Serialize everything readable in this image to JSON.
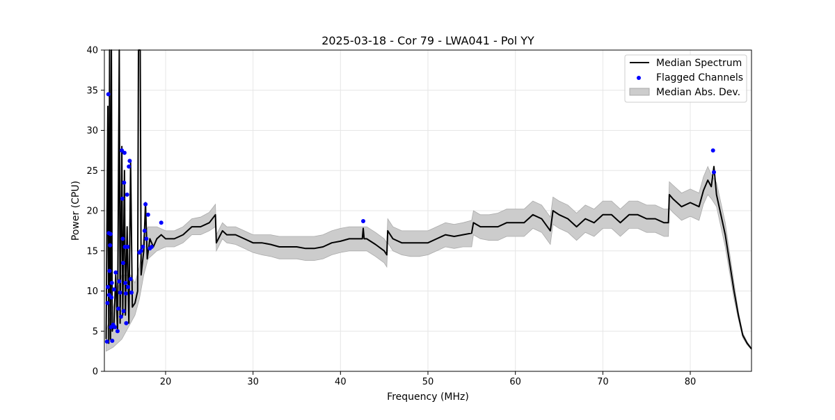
{
  "chart_data": {
    "type": "line",
    "title": "2025-03-18 - Cor 79 - LWA041 - Pol YY",
    "xlabel": "Frequency (MHz)",
    "ylabel": "Power (CPU)",
    "xlim": [
      13,
      87
    ],
    "ylim": [
      0,
      40
    ],
    "xticks": [
      20,
      30,
      40,
      50,
      60,
      70,
      80
    ],
    "yticks": [
      0,
      5,
      10,
      15,
      20,
      25,
      30,
      35,
      40
    ],
    "grid": true,
    "legend_position": "top-right",
    "legend": [
      {
        "label": "Median Spectrum",
        "kind": "line",
        "color": "#000000"
      },
      {
        "label": "Flagged Channels",
        "kind": "marker",
        "color": "#0000ff"
      },
      {
        "label": "Median Abs. Dev.",
        "kind": "band",
        "color": "#cccccc"
      }
    ],
    "series": [
      {
        "name": "Median Spectrum",
        "color": "#000000",
        "points": [
          [
            13.2,
            4
          ],
          [
            13.4,
            33
          ],
          [
            13.5,
            3.5
          ],
          [
            13.6,
            40
          ],
          [
            13.7,
            4
          ],
          [
            13.8,
            40
          ],
          [
            13.9,
            5
          ],
          [
            14.1,
            6
          ],
          [
            14.3,
            12
          ],
          [
            14.5,
            5
          ],
          [
            14.7,
            40
          ],
          [
            14.8,
            6
          ],
          [
            15.0,
            28
          ],
          [
            15.1,
            7
          ],
          [
            15.3,
            25
          ],
          [
            15.4,
            7
          ],
          [
            15.6,
            18
          ],
          [
            15.8,
            6
          ],
          [
            16.0,
            26
          ],
          [
            16.2,
            8
          ],
          [
            16.5,
            8.5
          ],
          [
            16.8,
            10
          ],
          [
            16.9,
            40
          ],
          [
            17.1,
            40
          ],
          [
            17.2,
            12
          ],
          [
            17.5,
            15
          ],
          [
            17.7,
            21
          ],
          [
            17.9,
            14
          ],
          [
            18.2,
            16.5
          ],
          [
            18.6,
            15.5
          ],
          [
            19.0,
            16.5
          ],
          [
            19.5,
            17
          ],
          [
            20.0,
            16.5
          ],
          [
            21.0,
            16.5
          ],
          [
            22.0,
            17
          ],
          [
            23.0,
            18
          ],
          [
            24.0,
            18
          ],
          [
            25.0,
            18.5
          ],
          [
            25.7,
            19.5
          ],
          [
            25.8,
            16
          ],
          [
            26.5,
            17.5
          ],
          [
            27.0,
            17
          ],
          [
            28.0,
            17
          ],
          [
            29.0,
            16.5
          ],
          [
            30.0,
            16
          ],
          [
            31.0,
            16
          ],
          [
            32.0,
            15.8
          ],
          [
            33.0,
            15.5
          ],
          [
            34.0,
            15.5
          ],
          [
            35.0,
            15.5
          ],
          [
            36.0,
            15.3
          ],
          [
            37.0,
            15.3
          ],
          [
            38.0,
            15.5
          ],
          [
            39.0,
            16
          ],
          [
            40.0,
            16.2
          ],
          [
            41.0,
            16.5
          ],
          [
            42.0,
            16.5
          ],
          [
            42.5,
            16.5
          ],
          [
            42.6,
            17.8
          ],
          [
            42.7,
            16.5
          ],
          [
            43.0,
            16.5
          ],
          [
            44.0,
            15.8
          ],
          [
            45.0,
            15
          ],
          [
            45.3,
            14.5
          ],
          [
            45.4,
            17.5
          ],
          [
            46.0,
            16.5
          ],
          [
            47.0,
            16
          ],
          [
            48.0,
            16
          ],
          [
            49.0,
            16
          ],
          [
            50.0,
            16
          ],
          [
            51.0,
            16.5
          ],
          [
            52.0,
            17
          ],
          [
            53.0,
            16.8
          ],
          [
            54.0,
            17
          ],
          [
            55.0,
            17.2
          ],
          [
            55.2,
            18.5
          ],
          [
            56.0,
            18
          ],
          [
            57.0,
            18
          ],
          [
            58.0,
            18
          ],
          [
            59.0,
            18.5
          ],
          [
            60.0,
            18.5
          ],
          [
            61.0,
            18.5
          ],
          [
            62.0,
            19.5
          ],
          [
            63.0,
            19
          ],
          [
            64.0,
            17.5
          ],
          [
            64.3,
            20
          ],
          [
            65.0,
            19.5
          ],
          [
            66.0,
            19
          ],
          [
            67.0,
            18
          ],
          [
            68.0,
            19
          ],
          [
            69.0,
            18.5
          ],
          [
            70.0,
            19.5
          ],
          [
            71.0,
            19.5
          ],
          [
            72.0,
            18.5
          ],
          [
            73.0,
            19.5
          ],
          [
            74.0,
            19.5
          ],
          [
            75.0,
            19
          ],
          [
            76.0,
            19
          ],
          [
            77.0,
            18.5
          ],
          [
            77.5,
            18.5
          ],
          [
            77.6,
            22
          ],
          [
            78.0,
            21.5
          ],
          [
            79.0,
            20.5
          ],
          [
            80.0,
            21
          ],
          [
            81.0,
            20.5
          ],
          [
            81.5,
            22.5
          ],
          [
            82.0,
            23.8
          ],
          [
            82.4,
            23
          ],
          [
            82.7,
            25.5
          ],
          [
            83.0,
            22
          ],
          [
            84.0,
            17
          ],
          [
            85.0,
            10
          ],
          [
            85.5,
            7
          ],
          [
            86.0,
            4.5
          ],
          [
            86.5,
            3.5
          ],
          [
            87.0,
            2.8
          ]
        ]
      },
      {
        "name": "Median Abs. Dev.",
        "color": "#cccccc",
        "band": [
          [
            13.2,
            2.5,
            5
          ],
          [
            14.0,
            3,
            8
          ],
          [
            15.0,
            4,
            12
          ],
          [
            16.0,
            6,
            12
          ],
          [
            16.5,
            7,
            11
          ],
          [
            17.0,
            9,
            13
          ],
          [
            17.5,
            12,
            17
          ],
          [
            18.0,
            14,
            18
          ],
          [
            19.0,
            15,
            18
          ],
          [
            20.0,
            15.5,
            17.5
          ],
          [
            21.0,
            15.5,
            17.5
          ],
          [
            22.0,
            16,
            18
          ],
          [
            23.0,
            17,
            19
          ],
          [
            24.0,
            17,
            19.2
          ],
          [
            25.0,
            17.5,
            19.8
          ],
          [
            25.7,
            18,
            20.8
          ],
          [
            25.8,
            15,
            17
          ],
          [
            26.5,
            16.5,
            18.5
          ],
          [
            27.0,
            16,
            18
          ],
          [
            28.0,
            15.8,
            18
          ],
          [
            29.0,
            15.3,
            17.5
          ],
          [
            30.0,
            14.8,
            17
          ],
          [
            31.0,
            14.5,
            17
          ],
          [
            32.0,
            14.3,
            17
          ],
          [
            33.0,
            14,
            16.8
          ],
          [
            34.0,
            14,
            16.8
          ],
          [
            35.0,
            14,
            16.8
          ],
          [
            36.0,
            13.8,
            16.8
          ],
          [
            37.0,
            13.8,
            16.8
          ],
          [
            38.0,
            14,
            17
          ],
          [
            39.0,
            14.5,
            17.5
          ],
          [
            40.0,
            14.8,
            17.8
          ],
          [
            41.0,
            15,
            18
          ],
          [
            42.0,
            15,
            18
          ],
          [
            43.0,
            15,
            18
          ],
          [
            44.0,
            14.3,
            17.3
          ],
          [
            45.0,
            13.5,
            16.5
          ],
          [
            45.3,
            13,
            16
          ],
          [
            45.4,
            16,
            19
          ],
          [
            46.0,
            15,
            18
          ],
          [
            47.0,
            14.5,
            17.5
          ],
          [
            48.0,
            14.3,
            17.5
          ],
          [
            49.0,
            14.3,
            17.5
          ],
          [
            50.0,
            14.5,
            17.5
          ],
          [
            51.0,
            15,
            18
          ],
          [
            52.0,
            15.5,
            18.5
          ],
          [
            53.0,
            15.3,
            18.3
          ],
          [
            54.0,
            15.5,
            18.5
          ],
          [
            55.0,
            15.5,
            18.8
          ],
          [
            55.2,
            17,
            20
          ],
          [
            56.0,
            16.5,
            19.5
          ],
          [
            57.0,
            16.3,
            19.5
          ],
          [
            58.0,
            16.3,
            19.7
          ],
          [
            59.0,
            16.8,
            20.2
          ],
          [
            60.0,
            16.8,
            20.2
          ],
          [
            61.0,
            16.8,
            20.2
          ],
          [
            62.0,
            17.8,
            21.2
          ],
          [
            63.0,
            17.3,
            20.7
          ],
          [
            64.0,
            15.8,
            19.2
          ],
          [
            64.3,
            18.3,
            21.7
          ],
          [
            65.0,
            17.8,
            21.2
          ],
          [
            66.0,
            17.3,
            20.7
          ],
          [
            67.0,
            16.3,
            19.7
          ],
          [
            68.0,
            17.3,
            20.7
          ],
          [
            69.0,
            16.8,
            20.2
          ],
          [
            70.0,
            17.8,
            21.2
          ],
          [
            71.0,
            17.8,
            21.2
          ],
          [
            72.0,
            16.8,
            20.2
          ],
          [
            73.0,
            17.8,
            21.2
          ],
          [
            74.0,
            17.8,
            21.2
          ],
          [
            75.0,
            17.3,
            20.7
          ],
          [
            76.0,
            17.3,
            20.7
          ],
          [
            77.0,
            16.8,
            20.2
          ],
          [
            77.5,
            16.8,
            20.2
          ],
          [
            77.6,
            20.3,
            23.6
          ],
          [
            78.0,
            19.8,
            23.2
          ],
          [
            79.0,
            18.8,
            22.2
          ],
          [
            80.0,
            19.3,
            22.7
          ],
          [
            81.0,
            18.8,
            22.2
          ],
          [
            81.5,
            20.8,
            24.2
          ],
          [
            82.0,
            22,
            25.5
          ],
          [
            82.4,
            21.5,
            24.5
          ],
          [
            83.0,
            20.5,
            23.5
          ],
          [
            84.0,
            15.5,
            18.5
          ],
          [
            85.0,
            9,
            11
          ],
          [
            85.5,
            6.5,
            7.5
          ],
          [
            86.0,
            4.2,
            4.8
          ],
          [
            86.5,
            3.3,
            3.7
          ],
          [
            87.0,
            2.7,
            2.9
          ]
        ]
      },
      {
        "name": "Flagged Channels",
        "color": "#0000ff",
        "points": [
          [
            13.3,
            3.7
          ],
          [
            13.35,
            8.5
          ],
          [
            13.4,
            10.5
          ],
          [
            13.45,
            34.5
          ],
          [
            13.5,
            17.2
          ],
          [
            13.55,
            9.5
          ],
          [
            13.6,
            12.5
          ],
          [
            13.65,
            15.7
          ],
          [
            13.7,
            17.1
          ],
          [
            13.75,
            5.5
          ],
          [
            13.8,
            9.2
          ],
          [
            13.85,
            11
          ],
          [
            13.9,
            3.8
          ],
          [
            14.0,
            5.8
          ],
          [
            14.1,
            10.2
          ],
          [
            14.2,
            5.5
          ],
          [
            14.3,
            12.3
          ],
          [
            14.5,
            5
          ],
          [
            14.6,
            7.8
          ],
          [
            14.7,
            11.2
          ],
          [
            14.8,
            9.8
          ],
          [
            14.9,
            6.8
          ],
          [
            15.0,
            27.5
          ],
          [
            15.05,
            21.5
          ],
          [
            15.1,
            16.5
          ],
          [
            15.15,
            13.5
          ],
          [
            15.2,
            7.5
          ],
          [
            15.25,
            23.5
          ],
          [
            15.3,
            27.2
          ],
          [
            15.35,
            15.5
          ],
          [
            15.4,
            11
          ],
          [
            15.45,
            9.7
          ],
          [
            15.5,
            6
          ],
          [
            15.6,
            22
          ],
          [
            15.65,
            15.5
          ],
          [
            15.7,
            10.5
          ],
          [
            15.8,
            25.5
          ],
          [
            15.9,
            26.2
          ],
          [
            16.0,
            11.5
          ],
          [
            16.1,
            9.8
          ],
          [
            17.0,
            14.8
          ],
          [
            17.2,
            15
          ],
          [
            17.4,
            15.5
          ],
          [
            17.6,
            17.5
          ],
          [
            17.7,
            20.8
          ],
          [
            17.8,
            16.5
          ],
          [
            18.0,
            19.5
          ],
          [
            18.2,
            15.3
          ],
          [
            18.4,
            15.5
          ],
          [
            19.5,
            18.5
          ],
          [
            42.6,
            18.7
          ],
          [
            82.6,
            27.5
          ],
          [
            82.7,
            24.8
          ]
        ]
      }
    ]
  }
}
